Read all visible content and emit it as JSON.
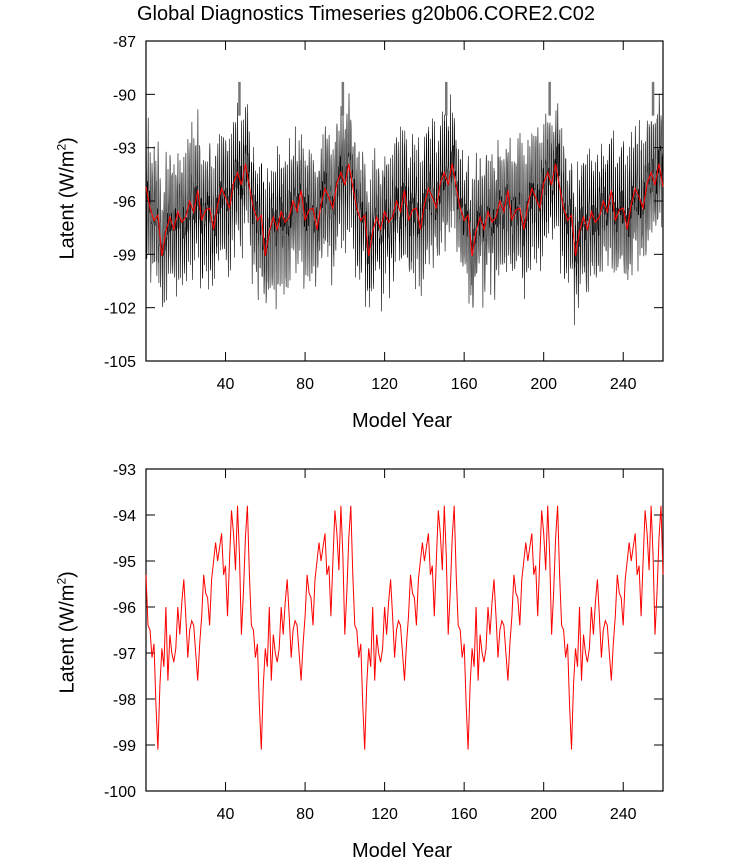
{
  "title": "Global Diagnostics Timeseries g20b06.CORE2.C02",
  "chart_data": [
    {
      "type": "line",
      "xlabel": "Model Year",
      "ylabel_main": "Latent (W/m",
      "ylabel_sup": "2",
      "ylabel_tail": ")",
      "xlim": [
        0,
        260
      ],
      "ylim": [
        -105,
        -87
      ],
      "xticks": [
        40,
        80,
        120,
        160,
        200,
        240
      ],
      "yticks": [
        -87,
        -90,
        -93,
        -96,
        -99,
        -102,
        -105
      ],
      "series": [
        {
          "style": "monthly",
          "color": "#000000",
          "min": -103.5,
          "max": -89.3
        },
        {
          "style": "annual mean",
          "color": "#ff0000",
          "x": [
            0,
            2,
            4,
            6,
            8,
            10,
            12,
            14,
            16,
            18,
            20,
            22,
            24,
            26,
            28,
            30,
            32,
            34,
            36,
            38,
            40,
            42,
            44,
            46,
            48,
            50,
            52
          ],
          "y": [
            -95.2,
            -96.4,
            -97.1,
            -96.8,
            -99.1,
            -97.7,
            -96.9,
            -97.6,
            -96.6,
            -97.2,
            -96.9,
            -96.0,
            -96.6,
            -95.4,
            -97.1,
            -96.5,
            -96.4,
            -97.6,
            -96.2,
            -95.3,
            -95.8,
            -96.4,
            -95.0,
            -94.4,
            -95.1,
            -93.9,
            -93.8
          ]
        }
      ]
    },
    {
      "type": "line",
      "xlabel": "Model Year",
      "ylabel_main": "Latent (W/m",
      "ylabel_sup": "2",
      "ylabel_tail": ")",
      "xlim": [
        0,
        260
      ],
      "ylim": [
        -100,
        -93
      ],
      "xticks": [
        40,
        80,
        120,
        160,
        200,
        240
      ],
      "yticks": [
        -93,
        -94,
        -95,
        -96,
        -97,
        -98,
        -99,
        -100
      ],
      "series": [
        {
          "color": "#ff0000",
          "x": [
            0,
            1,
            2,
            3,
            4,
            5,
            6,
            7,
            8,
            9,
            10,
            11,
            12,
            13,
            14,
            15,
            16,
            17,
            18,
            19,
            20,
            21,
            22,
            23,
            24,
            25,
            26,
            27,
            28,
            29,
            30,
            31,
            32,
            33,
            34,
            35,
            36,
            37,
            38,
            39,
            40,
            41,
            42,
            43,
            44,
            45,
            46,
            47,
            48,
            49,
            50,
            51,
            52
          ],
          "y": [
            -95.3,
            -96.4,
            -96.5,
            -97.1,
            -96.8,
            -98.1,
            -99.1,
            -97.7,
            -96.9,
            -97.3,
            -96.0,
            -97.6,
            -96.6,
            -97.0,
            -97.2,
            -96.9,
            -96.0,
            -96.6,
            -95.9,
            -95.4,
            -96.2,
            -97.1,
            -96.5,
            -96.3,
            -96.4,
            -97.0,
            -97.6,
            -96.8,
            -96.2,
            -95.3,
            -95.7,
            -95.8,
            -96.4,
            -95.4,
            -95.0,
            -94.6,
            -95.0,
            -94.7,
            -94.4,
            -95.3,
            -95.1,
            -96.2,
            -95.0,
            -93.9,
            -94.4,
            -95.2,
            -93.8,
            -94.9,
            -96.6,
            -95.7,
            -94.5,
            -93.8,
            -93.9
          ]
        }
      ]
    }
  ]
}
